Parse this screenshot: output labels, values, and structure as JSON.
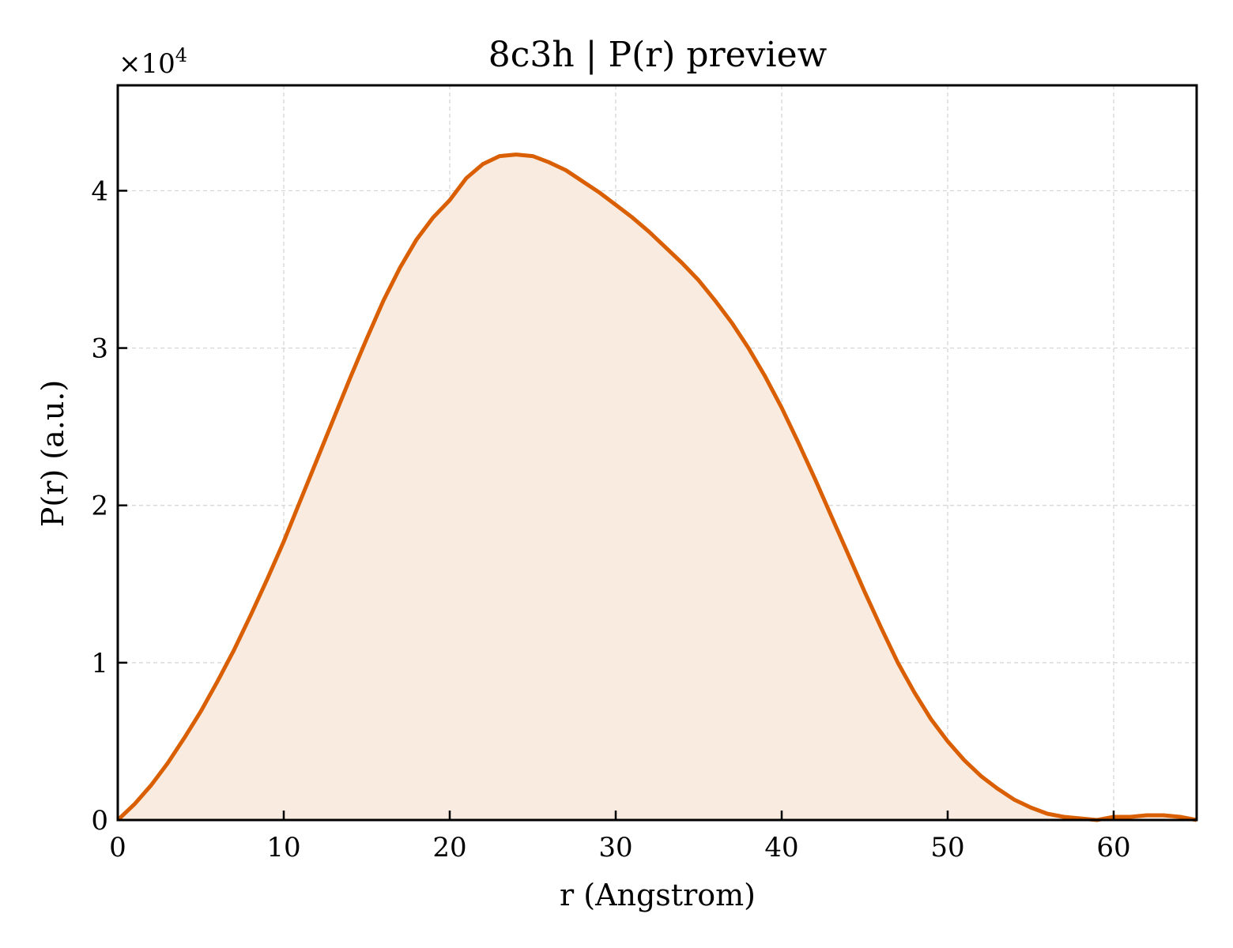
{
  "chart_data": {
    "type": "area",
    "title": "8c3h | P(r) preview",
    "xlabel": "r (Angstrom)",
    "ylabel": "P(r) (a.u.)",
    "y_multiplier_base": "×10",
    "y_multiplier_exp": "4",
    "xlim": [
      0,
      65
    ],
    "ylim": [
      0,
      4.67
    ],
    "xticks": [
      0,
      10,
      20,
      30,
      40,
      50,
      60
    ],
    "xtick_labels": [
      "0",
      "10",
      "20",
      "30",
      "40",
      "50",
      "60"
    ],
    "yticks": [
      0,
      1,
      2,
      3,
      4
    ],
    "ytick_labels": [
      "0",
      "1",
      "2",
      "3",
      "4"
    ],
    "grid": true,
    "line_color": "#d95f02",
    "fill_color": "#f9ebe0",
    "series": [
      {
        "x": [
          0,
          1,
          2,
          3,
          4,
          5,
          6,
          7,
          8,
          9,
          10,
          11,
          12,
          13,
          14,
          15,
          16,
          17,
          18,
          19,
          20,
          21,
          22,
          23,
          24,
          25,
          26,
          27,
          28,
          29,
          30,
          31,
          32,
          33,
          34,
          35,
          36,
          37,
          38,
          39,
          40,
          41,
          42,
          43,
          44,
          45,
          46,
          47,
          48,
          49,
          50,
          51,
          52,
          53,
          54,
          55,
          56,
          57,
          58,
          59,
          60,
          61,
          62,
          63,
          64,
          65
        ],
        "y": [
          0,
          0.1,
          0.22,
          0.36,
          0.52,
          0.69,
          0.88,
          1.08,
          1.3,
          1.53,
          1.77,
          2.03,
          2.29,
          2.55,
          2.81,
          3.06,
          3.3,
          3.51,
          3.69,
          3.83,
          3.94,
          4.08,
          4.17,
          4.22,
          4.23,
          4.22,
          4.18,
          4.13,
          4.06,
          3.99,
          3.91,
          3.83,
          3.74,
          3.64,
          3.54,
          3.43,
          3.3,
          3.16,
          3.0,
          2.82,
          2.62,
          2.4,
          2.17,
          1.93,
          1.69,
          1.45,
          1.22,
          1.0,
          0.81,
          0.64,
          0.5,
          0.38,
          0.28,
          0.2,
          0.13,
          0.08,
          0.04,
          0.02,
          0.01,
          0.0,
          0.02,
          0.02,
          0.03,
          0.03,
          0.02,
          0.0
        ]
      }
    ]
  }
}
